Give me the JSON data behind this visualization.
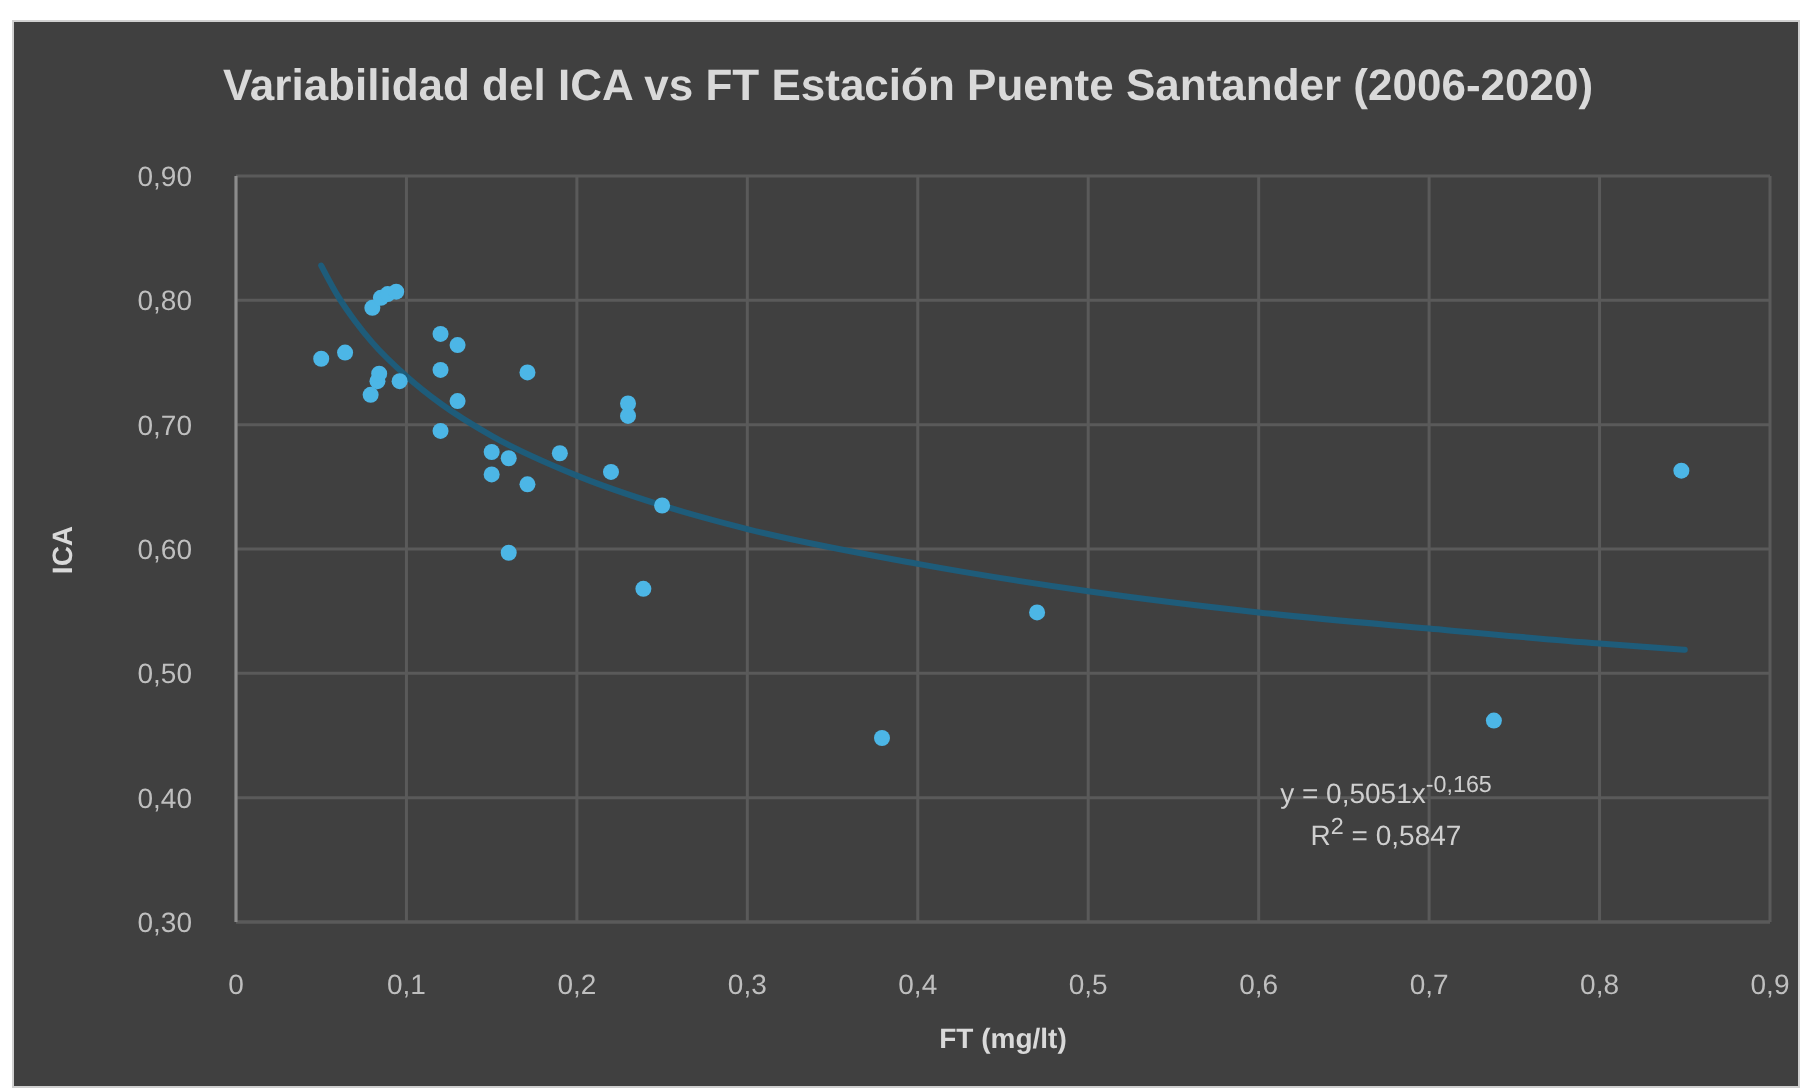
{
  "chart_data": {
    "type": "scatter",
    "title": "Variabilidad del ICA vs FT Estación Puente Santander (2006-2020)",
    "xlabel": "FT (mg/lt)",
    "ylabel": "ICA",
    "series": [
      {
        "color": "#4cb6e6",
        "marker": "circle",
        "x": [
          0.05,
          0.064,
          0.079,
          0.08,
          0.083,
          0.084,
          0.085,
          0.089,
          0.094,
          0.096,
          0.12,
          0.12,
          0.12,
          0.13,
          0.13,
          0.15,
          0.15,
          0.16,
          0.16,
          0.171,
          0.171,
          0.19,
          0.22,
          0.23,
          0.23,
          0.239,
          0.25,
          0.379,
          0.47,
          0.738,
          0.848
        ],
        "values": [
          0.753,
          0.758,
          0.724,
          0.794,
          0.735,
          0.741,
          0.802,
          0.805,
          0.807,
          0.735,
          0.773,
          0.744,
          0.695,
          0.764,
          0.719,
          0.678,
          0.66,
          0.673,
          0.597,
          0.742,
          0.652,
          0.677,
          0.662,
          0.717,
          0.707,
          0.568,
          0.635,
          0.448,
          0.549,
          0.462,
          0.663
        ]
      },
      {
        "type": "line",
        "color": "#1e5c7a",
        "marker": "none",
        "x": [
          0.05,
          0.06,
          0.07,
          0.08,
          0.1,
          0.12,
          0.15,
          0.2,
          0.25,
          0.3,
          0.4,
          0.5,
          0.6,
          0.7,
          0.8,
          0.85
        ],
        "values": [
          0.828,
          0.803,
          0.783,
          0.766,
          0.739,
          0.717,
          0.691,
          0.659,
          0.635,
          0.616,
          0.588,
          0.566,
          0.549,
          0.536,
          0.524,
          0.519
        ]
      }
    ],
    "xlim": [
      0,
      0.9
    ],
    "xticks": [
      0,
      {
        "value": 0.1,
        "label": "0,1"
      },
      {
        "value": 0.2,
        "label": "0,2"
      },
      {
        "value": 0.3,
        "label": "0,3"
      },
      {
        "value": 0.4,
        "label": "0,4"
      },
      {
        "value": 0.5,
        "label": "0,5"
      },
      {
        "value": 0.6,
        "label": "0,6"
      },
      {
        "value": 0.7,
        "label": "0,7"
      },
      {
        "value": 0.8,
        "label": "0,8"
      },
      {
        "value": 0.9,
        "label": "0,9"
      }
    ],
    "ylim": [
      0.3,
      0.9
    ],
    "yticks": [
      {
        "value": 0.3,
        "label": "0,30"
      },
      {
        "value": 0.4,
        "label": "0,40"
      },
      {
        "value": 0.5,
        "label": "0,50"
      },
      {
        "value": 0.6,
        "label": "0,60"
      },
      {
        "value": 0.7,
        "label": "0,70"
      },
      {
        "value": 0.8,
        "label": "0,80"
      },
      {
        "value": 0.9,
        "label": "0,90"
      }
    ],
    "grid": true,
    "annotations": [
      "y = 0,5051x$^{-0,165}$",
      "R$^{2}$ = 0,5847"
    ]
  }
}
